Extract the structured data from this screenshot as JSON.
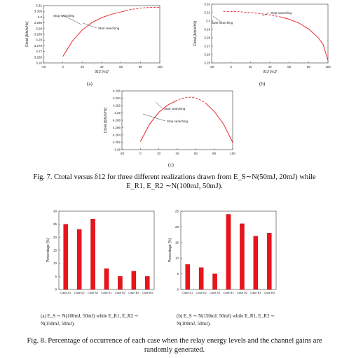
{
  "fig7": {
    "caption_line1": "Fig. 7. Ctotal versus δ12 for three different realizations drawn from E_S∼N(50mJ, 20mJ) while",
    "caption_line2": "E_R1, E_R2 ∼N(100mJ, 50mJ).",
    "panels": [
      {
        "label": "(a)"
      },
      {
        "label": "(b)"
      },
      {
        "label": "(c)"
      }
    ]
  },
  "fig8": {
    "caption_line1": "Fig. 8. Percentage of occurrence of each case when the relay energy levels and the channel gains are",
    "caption_line2": "randomly generated.",
    "subcaption_a_line1": "(a) E_S ∼ N(100mJ, 50mJ) while E_R1, E_R2 ∼",
    "subcaption_a_line2": "N(150mJ, 50mJ).",
    "subcaption_b_line1": "(b) E_S ∼ N(150mJ, 50mJ) while E_R1, E_R2 ∼",
    "subcaption_b_line2": "N(100mJ, 50mJ)."
  },
  "chart_data": [
    {
      "type": "line",
      "id": "7a",
      "xlabel": "δ12 [mJ]",
      "ylabel": "Ctotal [bits/s/Hz]",
      "xlim": [
        -20,
        100
      ],
      "ylim": [
        3.26,
        3.31
      ],
      "xticks": [
        "-20",
        "0",
        "20",
        "40",
        "60",
        "80",
        "100"
      ],
      "yticks": [
        "3.26",
        "3.265",
        "3.27",
        "3.275",
        "3.28",
        "3.285",
        "3.29",
        "3.295",
        "3.3",
        "3.305",
        "3.31"
      ],
      "series": [
        {
          "style": "solid",
          "x": [
            0,
            10,
            20,
            30,
            40,
            50,
            60,
            65
          ],
          "y": [
            3.2657,
            3.2792,
            3.2887,
            3.2952,
            3.2995,
            3.3024,
            3.3045,
            3.3055
          ]
        },
        {
          "style": "dashed",
          "x": [
            65,
            70,
            80,
            90,
            100
          ],
          "y": [
            3.3055,
            3.3066,
            3.3078,
            3.3084,
            3.3086
          ]
        }
      ],
      "annotations": [
        "Stop searching",
        "Start searching"
      ]
    },
    {
      "type": "line",
      "id": "7b",
      "xlabel": "δ12 [mJ]",
      "ylabel": "Ctotal [bits/s/Hz]",
      "xlim": [
        -20,
        100
      ],
      "ylim": [
        3.25,
        3.32
      ],
      "xticks": [
        "-20",
        "0",
        "20",
        "40",
        "60",
        "80",
        "100"
      ],
      "yticks": [
        "3.25",
        "3.26",
        "3.27",
        "3.28",
        "3.29",
        "3.3",
        "3.31",
        "3.32"
      ],
      "series": [
        {
          "style": "dashed",
          "x": [
            -8,
            0,
            10,
            20,
            30,
            40,
            50
          ],
          "y": [
            3.3115,
            3.3114,
            3.3109,
            3.31,
            3.3088,
            3.3072,
            3.3052
          ]
        },
        {
          "style": "solid",
          "x": [
            50,
            60,
            70,
            80,
            90,
            95,
            100
          ],
          "y": [
            3.3052,
            3.302,
            3.2975,
            3.2905,
            3.28,
            3.272,
            3.253
          ]
        }
      ],
      "annotations": [
        "Stop searching",
        "Start searching"
      ]
    },
    {
      "type": "line",
      "id": "7c",
      "xlabel": "δ12 [mJ]",
      "ylabel": "Ctotal [bits/s/Hz]",
      "xlim": [
        -20,
        100
      ],
      "ylim": [
        4.28,
        4.296
      ],
      "xticks": [
        "-20",
        "0",
        "20",
        "40",
        "60",
        "80",
        "100"
      ],
      "yticks": [
        "4.28",
        "4.282",
        "4.284",
        "4.286",
        "4.288",
        "4.29",
        "4.292",
        "4.294",
        "4.296"
      ],
      "series": [
        {
          "style": "solid",
          "x": [
            0,
            10,
            20,
            30,
            38
          ],
          "y": [
            4.2822,
            4.287,
            4.2902,
            4.2922,
            4.2932
          ]
        },
        {
          "style": "dashed",
          "x": [
            38,
            45,
            55,
            62,
            70
          ],
          "y": [
            4.2932,
            4.294,
            4.2943,
            4.2939,
            4.2928
          ]
        },
        {
          "style": "solid",
          "x": [
            70,
            80,
            90,
            100
          ],
          "y": [
            4.2928,
            4.2904,
            4.287,
            4.282
          ]
        }
      ],
      "annotations": [
        "Start searching",
        "Stop searching"
      ]
    },
    {
      "type": "bar",
      "id": "8a",
      "ylabel": "Percentage [%]",
      "ylim": [
        0,
        30
      ],
      "yticks": [
        "0",
        "5",
        "10",
        "15",
        "20",
        "25",
        "30"
      ],
      "categories": [
        "Case A1",
        "Case A2",
        "Case A3",
        "Case B1",
        "Case B2",
        "Case B3",
        "Case B4"
      ],
      "values": [
        25,
        23,
        27,
        8,
        5,
        7,
        5
      ],
      "color": "#e8141c"
    },
    {
      "type": "bar",
      "id": "8b",
      "ylabel": "Percentage [%]",
      "ylim": [
        0,
        25
      ],
      "yticks": [
        "0",
        "5",
        "10",
        "15",
        "20",
        "25"
      ],
      "categories": [
        "Case A1",
        "Case A2",
        "Case A3",
        "Case B1",
        "Case B2",
        "Case B3",
        "Case B4"
      ],
      "values": [
        8,
        7,
        5,
        24,
        21,
        17,
        18
      ],
      "color": "#e8141c"
    }
  ]
}
